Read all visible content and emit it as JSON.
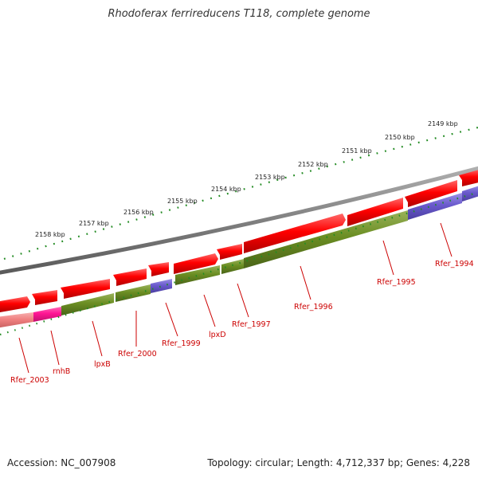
{
  "title": "Rhodoferax ferrireducens T118, complete genome",
  "footer": {
    "accession": "Accession: NC_007908",
    "summary": "Topology: circular; Length: 4,712,337 bp; Genes: 4,228"
  },
  "colors": {
    "cds_red": "#ff0000",
    "cds_green": "#6b8e23",
    "cds_purple": "#6a5acd",
    "cds_magenta": "#ff1493",
    "cds_salmon": "#f08080",
    "backbone": "#808080",
    "ticks": "#228b22",
    "label": "#cc0000"
  },
  "scale_ticks": [
    "2149 kbp",
    "2150 kbp",
    "2151 kbp",
    "2152 kbp",
    "2153 kbp",
    "2154 kbp",
    "2155 kbp",
    "2156 kbp",
    "2157 kbp",
    "2158 kbp"
  ],
  "gene_labels": [
    "Rfer_1994",
    "Rfer_1995",
    "Rfer_1996",
    "Rfer_1997",
    "lpxD",
    "Rfer_1999",
    "Rfer_2000",
    "lpxB",
    "rnhB",
    "Rfer_2003"
  ]
}
